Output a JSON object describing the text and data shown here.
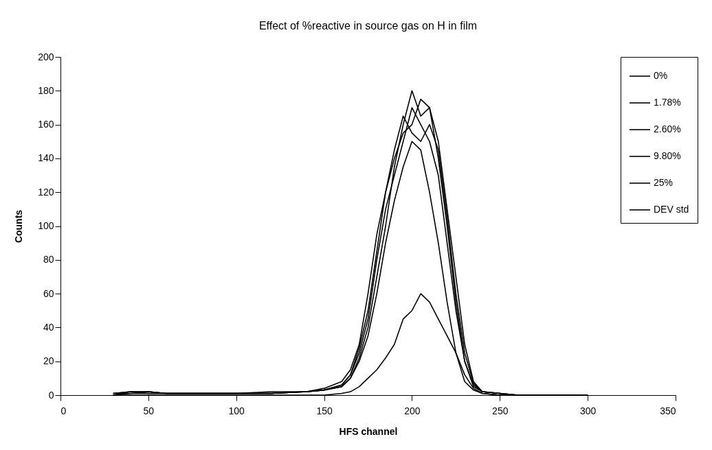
{
  "chart_data": {
    "type": "line",
    "title": "Effect of %reactive in source gas on H in film",
    "xlabel": "HFS channel",
    "ylabel": "Counts",
    "x": [
      30,
      40,
      50,
      60,
      80,
      100,
      120,
      140,
      150,
      160,
      165,
      170,
      175,
      180,
      185,
      190,
      195,
      200,
      205,
      210,
      215,
      220,
      225,
      230,
      235,
      240,
      250,
      260,
      280,
      300
    ],
    "xlim": [
      0,
      350
    ],
    "xticks": [
      0,
      50,
      100,
      150,
      200,
      250,
      300,
      350
    ],
    "ylim": [
      0,
      200
    ],
    "yticks": [
      0,
      20,
      40,
      60,
      80,
      100,
      120,
      140,
      160,
      180,
      200
    ],
    "grid": false,
    "legend": "right",
    "marker": "none",
    "line_style": "solid",
    "series": [
      {
        "name": "0%",
        "color": "#000000",
        "values": [
          1,
          2,
          2,
          1,
          1,
          1,
          1,
          2,
          3,
          6,
          12,
          25,
          45,
          80,
          110,
          130,
          150,
          170,
          160,
          150,
          130,
          90,
          50,
          20,
          6,
          2,
          1,
          0,
          0,
          0
        ]
      },
      {
        "name": "1.78%",
        "color": "#000000",
        "values": [
          0,
          2,
          2,
          1,
          1,
          1,
          1,
          2,
          4,
          8,
          15,
          30,
          60,
          95,
          120,
          140,
          155,
          160,
          175,
          170,
          140,
          100,
          55,
          20,
          5,
          2,
          1,
          0,
          0,
          0
        ]
      },
      {
        "name": "2.60%",
        "color": "#000000",
        "values": [
          1,
          1,
          2,
          1,
          1,
          1,
          1,
          2,
          3,
          5,
          10,
          22,
          40,
          70,
          100,
          135,
          160,
          180,
          165,
          170,
          150,
          110,
          70,
          30,
          8,
          2,
          1,
          0,
          0,
          0
        ]
      },
      {
        "name": "9.80%",
        "color": "#000000",
        "values": [
          0,
          1,
          1,
          1,
          1,
          1,
          2,
          2,
          3,
          6,
          12,
          28,
          50,
          85,
          120,
          145,
          165,
          155,
          150,
          160,
          145,
          105,
          60,
          25,
          7,
          2,
          1,
          0,
          0,
          0
        ]
      },
      {
        "name": "25%",
        "color": "#000000",
        "values": [
          1,
          2,
          1,
          1,
          1,
          1,
          1,
          2,
          3,
          5,
          10,
          20,
          35,
          60,
          90,
          115,
          135,
          150,
          145,
          120,
          90,
          55,
          25,
          8,
          3,
          1,
          0,
          0,
          0,
          0
        ]
      },
      {
        "name": "DEV std",
        "color": "#000000",
        "values": [
          0,
          0,
          0,
          0,
          0,
          0,
          0,
          0,
          0,
          1,
          2,
          5,
          10,
          15,
          22,
          30,
          45,
          50,
          60,
          55,
          45,
          35,
          25,
          12,
          4,
          1,
          0,
          0,
          0,
          0
        ]
      }
    ]
  }
}
